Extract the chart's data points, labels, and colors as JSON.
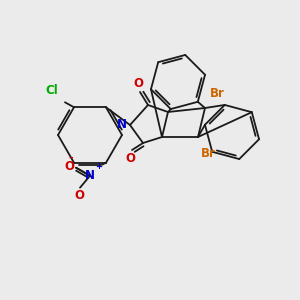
{
  "background_color": "#ebebeb",
  "bond_color": "#1a1a1a",
  "atom_colors": {
    "Br": "#cc6600",
    "Cl": "#00aa00",
    "N": "#0000cc",
    "O": "#cc0000"
  },
  "figsize": [
    3.0,
    3.0
  ],
  "dpi": 100
}
